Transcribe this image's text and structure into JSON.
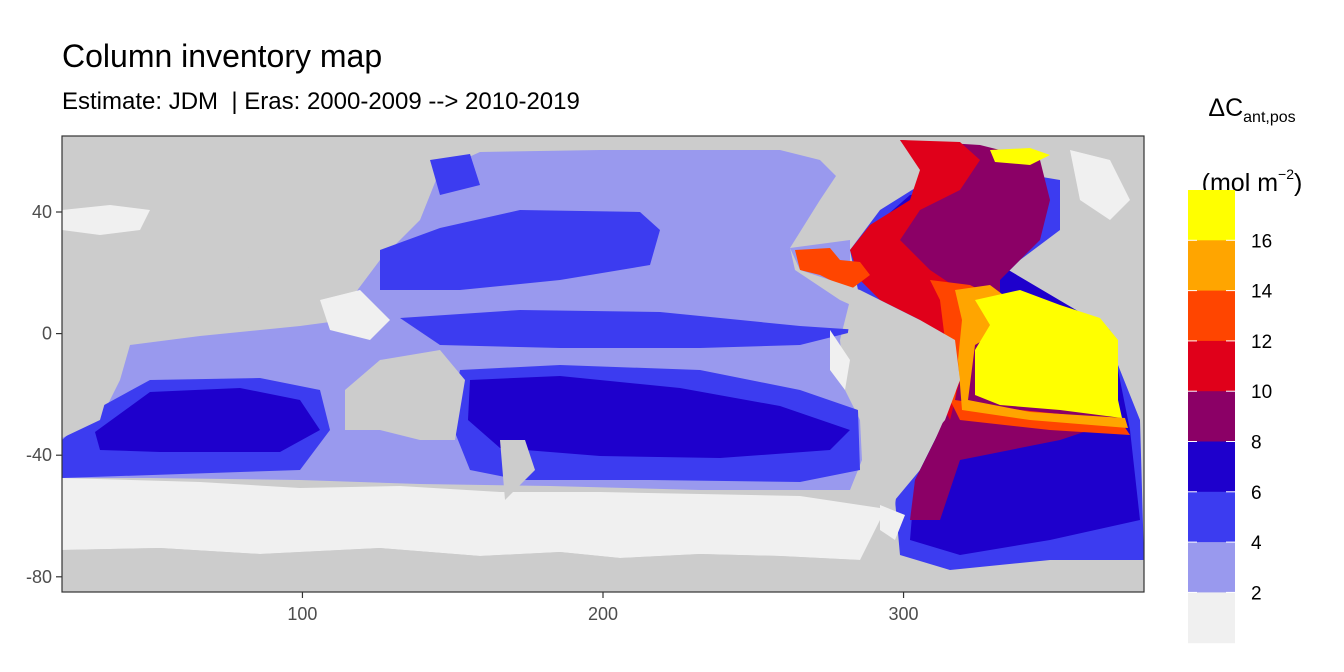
{
  "title": "Column inventory map",
  "subtitle": "Estimate: JDM  | Eras: 2000-2009 --> 2010-2019",
  "chart_data": {
    "type": "heatmap",
    "map": "global ocean, longitude 20-380, latitude -85-65",
    "x_ticks": [
      100,
      200,
      300
    ],
    "y_ticks": [
      40,
      0,
      -40,
      -80
    ],
    "xlim": [
      20,
      380
    ],
    "ylim": [
      -85,
      65
    ],
    "legend": {
      "title_main": "ΔC",
      "title_sub": "ant,pos",
      "unit_main": "(mol m",
      "unit_sup": "−2",
      "unit_close": ")",
      "breaks": [
        "16",
        "14",
        "12",
        "10",
        "8",
        "6",
        "4",
        "2"
      ],
      "bins": [
        {
          "range": "16+",
          "color": "#FFFF00"
        },
        {
          "range": "14-16",
          "color": "#FFA500"
        },
        {
          "range": "12-14",
          "color": "#FF4500"
        },
        {
          "range": "10-12",
          "color": "#E0001A"
        },
        {
          "range": "8-10",
          "color": "#8B0066"
        },
        {
          "range": "6-8",
          "color": "#1E00CC"
        },
        {
          "range": "4-6",
          "color": "#3C3CF0"
        },
        {
          "range": "2-4",
          "color": "#9999EE"
        },
        {
          "range": "<2",
          "color": "#F0F0F0"
        }
      ]
    },
    "land_color": "#CCCCCC",
    "grid": false
  }
}
